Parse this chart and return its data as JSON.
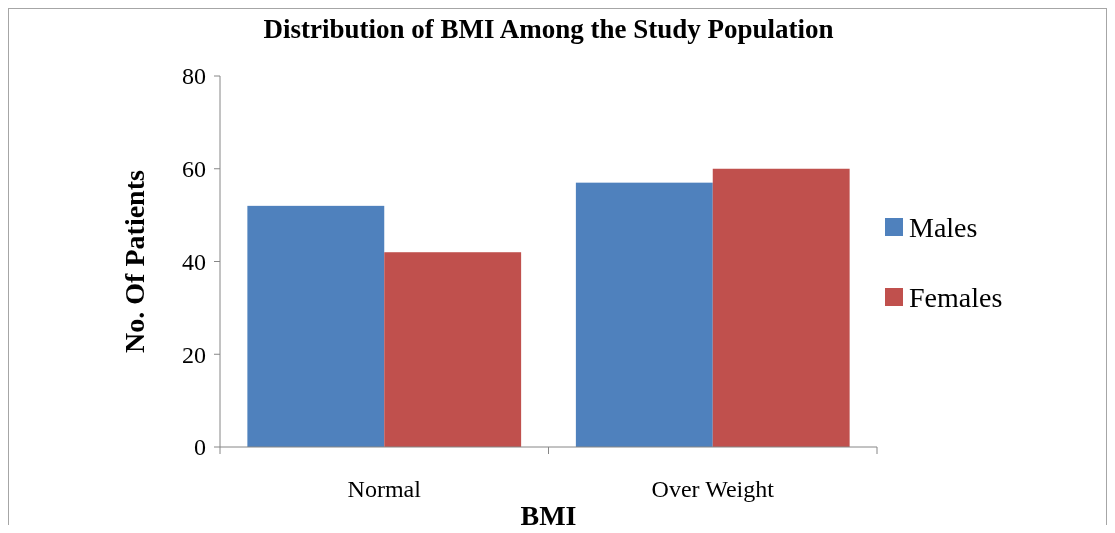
{
  "chart_data": {
    "type": "bar",
    "title": "Distribution of BMI Among the Study Population",
    "xlabel": "BMI",
    "ylabel": "No. Of Patients",
    "categories": [
      "Normal",
      "Over Weight"
    ],
    "series": [
      {
        "name": "Males",
        "color": "#4f81bd",
        "values": [
          52,
          57
        ]
      },
      {
        "name": "Females",
        "color": "#c0504d",
        "values": [
          42,
          60
        ]
      }
    ],
    "ylim": [
      0,
      80
    ],
    "yticks": [
      0,
      20,
      40,
      60,
      80
    ],
    "grid": false,
    "legend": "right"
  }
}
